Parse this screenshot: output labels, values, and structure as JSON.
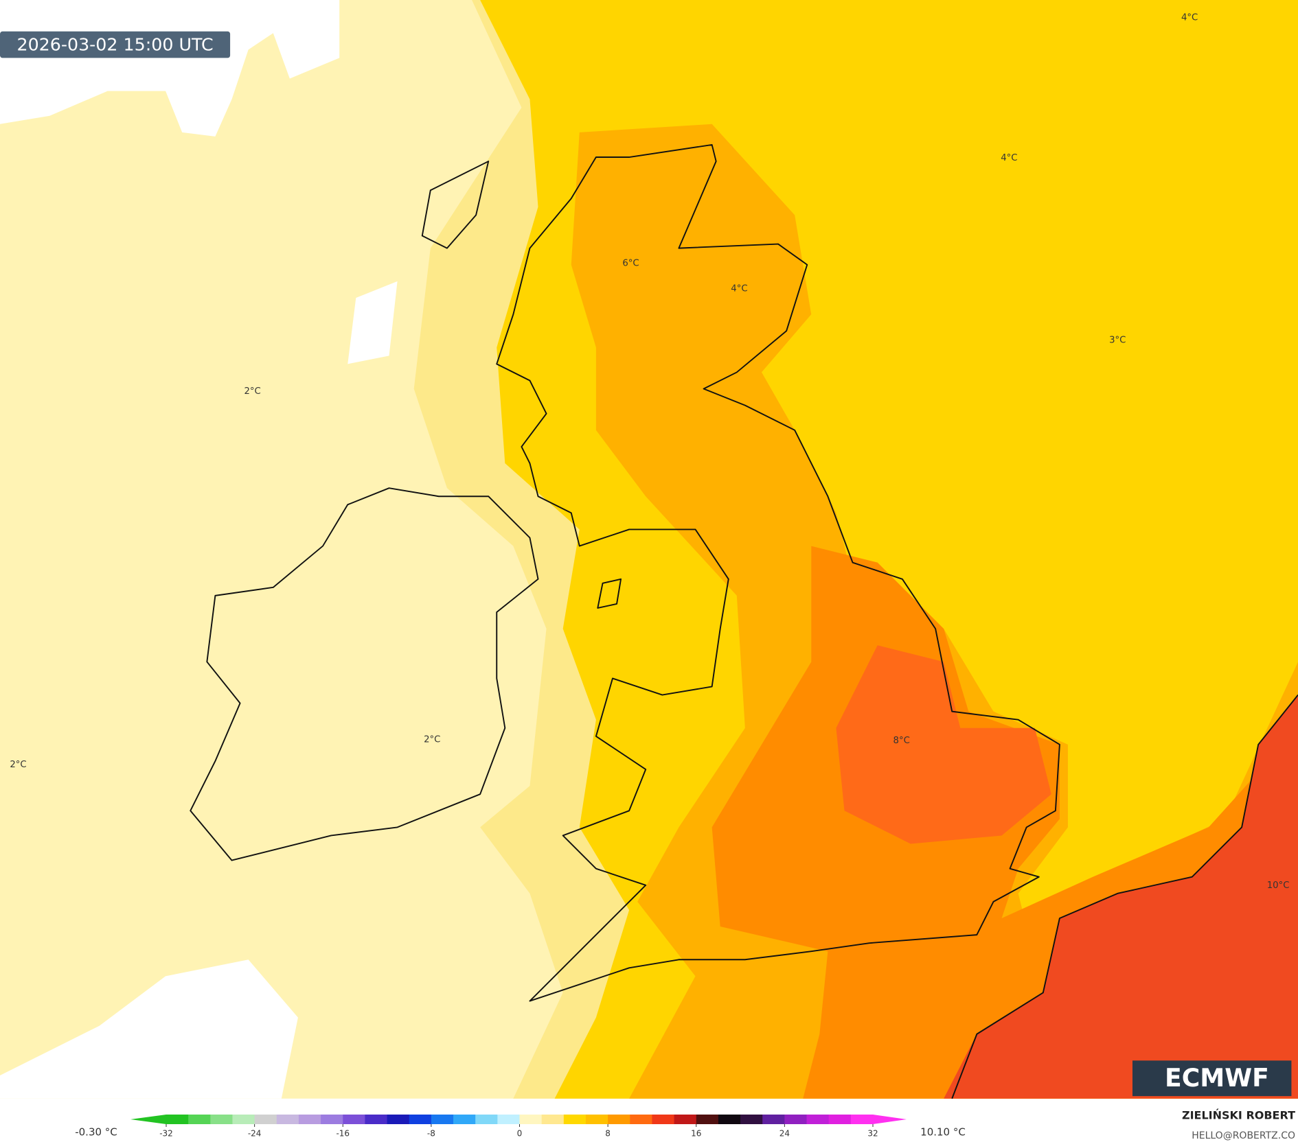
{
  "timestamp": "2026-03-02 15:00 UTC",
  "contour_labels": [
    "4°C",
    "4°C",
    "6°C",
    "4°C",
    "3°C",
    "2°C",
    "2°C",
    "2°C",
    "8°C",
    "10°C"
  ],
  "legend": {
    "min_label": "-0.30 °C",
    "max_label": "10.10 °C",
    "range": [
      -32,
      32
    ],
    "ticks": [
      -32,
      -24,
      -16,
      -8,
      0,
      8,
      16,
      24,
      32
    ],
    "colors": [
      "#22c322",
      "#55d455",
      "#88e088",
      "#b8ecb8",
      "#d0d0d0",
      "#c8b8e0",
      "#b89ce0",
      "#9c7ce0",
      "#7c50d8",
      "#4a2cc8",
      "#1a1ab8",
      "#1040e0",
      "#1878f0",
      "#30a8f8",
      "#80d8f8",
      "#c0f0ff",
      "#fff6c0",
      "#ffe890",
      "#ffd800",
      "#ffc000",
      "#ff9a00",
      "#ff6a10",
      "#f03818",
      "#c01818",
      "#501010",
      "#100810",
      "#301040",
      "#6020a0",
      "#9020c0",
      "#c020d8",
      "#e020e0",
      "#ff30f0"
    ]
  },
  "credit": {
    "author": "ZIELIŃSKI ROBERT",
    "email": "HELLO@ROBERTZ.CO"
  },
  "logo": "ECMWF"
}
